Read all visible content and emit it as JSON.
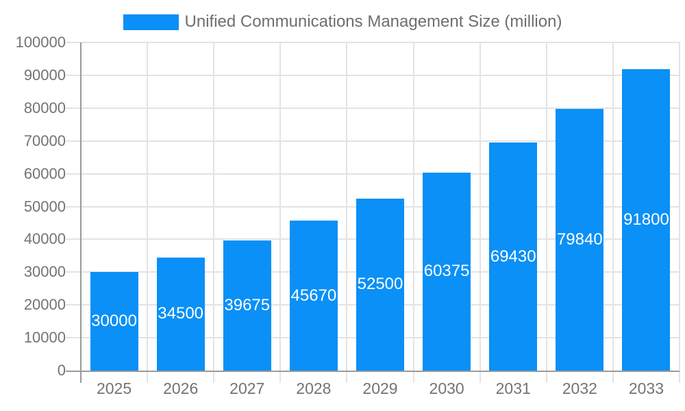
{
  "chart_data": {
    "type": "bar",
    "categories": [
      "2025",
      "2026",
      "2027",
      "2028",
      "2029",
      "2030",
      "2031",
      "2032",
      "2033"
    ],
    "values": [
      30000,
      34500,
      39675,
      45670,
      52500,
      60375,
      69430,
      79840,
      91800
    ],
    "title": "",
    "legend_entries": [
      "Unified Communications Management Size (million)"
    ],
    "legend_position": "top",
    "xlabel": "",
    "ylabel": "",
    "ylim": [
      0,
      100000
    ],
    "yticks": [
      0,
      10000,
      20000,
      30000,
      40000,
      50000,
      60000,
      70000,
      80000,
      90000,
      100000
    ],
    "grid": true,
    "value_labels_shown": true
  },
  "colors": {
    "bar": "#0a90f6",
    "grid": "#e3e3e3",
    "axis": "#9a9a9a",
    "tick_label": "#737373",
    "legend_text": "#6e6e6e",
    "value_label": "#ffffff",
    "background": "#ffffff"
  }
}
